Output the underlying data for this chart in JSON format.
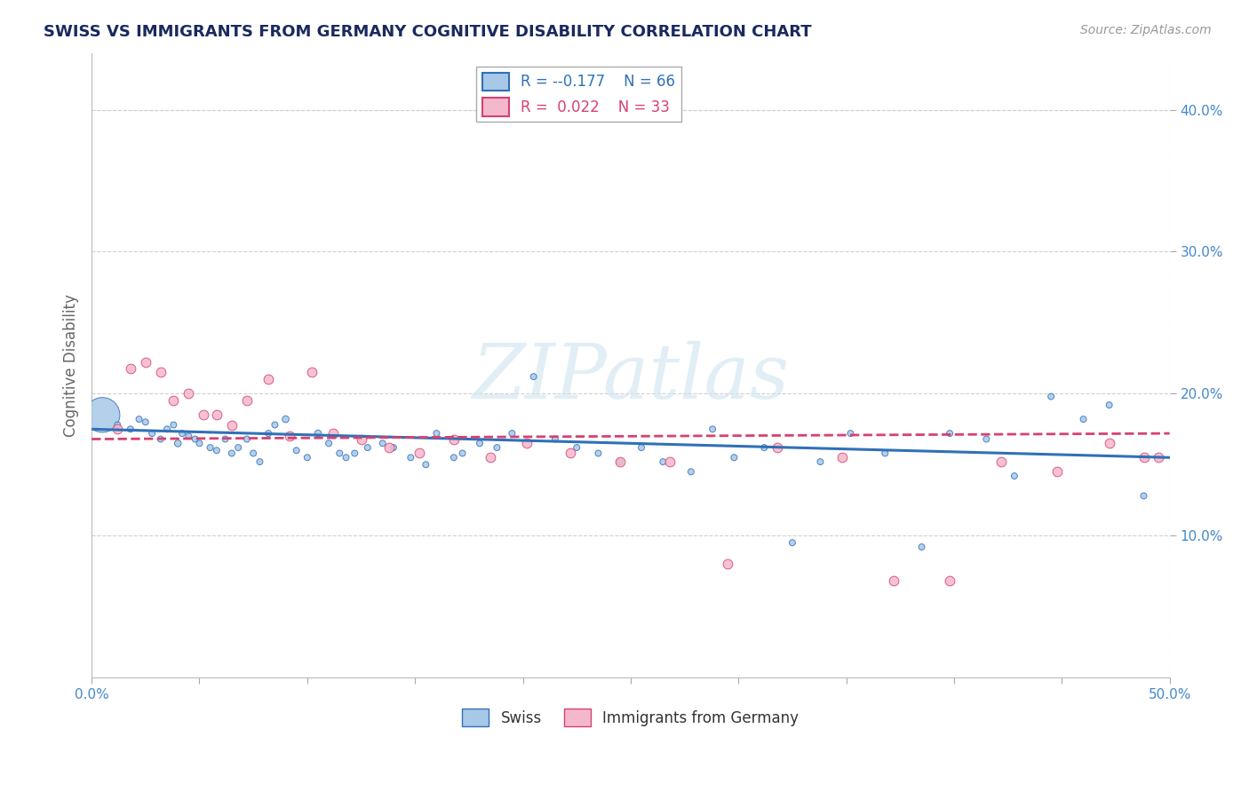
{
  "title": "SWISS VS IMMIGRANTS FROM GERMANY COGNITIVE DISABILITY CORRELATION CHART",
  "source_text": "Source: ZipAtlas.com",
  "ylabel": "Cognitive Disability",
  "xlim": [
    0.0,
    0.5
  ],
  "ylim": [
    0.0,
    0.44
  ],
  "xticks": [
    0.0,
    0.05,
    0.1,
    0.15,
    0.2,
    0.25,
    0.3,
    0.35,
    0.4,
    0.45,
    0.5
  ],
  "yticks": [
    0.1,
    0.2,
    0.3,
    0.4
  ],
  "ytick_labels": [
    "10.0%",
    "20.0%",
    "30.0%",
    "40.0%"
  ],
  "xtick_labels_show": [
    "0.0%",
    "50.0%"
  ],
  "background_color": "#ffffff",
  "grid_color": "#d0d0d0",
  "swiss_color": "#a8c8e8",
  "german_color": "#f4b8cc",
  "swiss_line_color": "#3070b8",
  "german_line_color": "#d84070",
  "swiss_x": [
    0.005,
    0.012,
    0.018,
    0.022,
    0.025,
    0.028,
    0.032,
    0.035,
    0.038,
    0.04,
    0.042,
    0.045,
    0.048,
    0.05,
    0.055,
    0.058,
    0.062,
    0.065,
    0.068,
    0.072,
    0.075,
    0.078,
    0.082,
    0.085,
    0.09,
    0.095,
    0.1,
    0.105,
    0.11,
    0.115,
    0.118,
    0.122,
    0.128,
    0.135,
    0.14,
    0.148,
    0.155,
    0.16,
    0.168,
    0.172,
    0.18,
    0.188,
    0.195,
    0.205,
    0.215,
    0.225,
    0.235,
    0.245,
    0.255,
    0.265,
    0.278,
    0.288,
    0.298,
    0.312,
    0.325,
    0.338,
    0.352,
    0.368,
    0.385,
    0.398,
    0.415,
    0.428,
    0.445,
    0.46,
    0.472,
    0.488
  ],
  "swiss_y": [
    0.185,
    0.178,
    0.175,
    0.182,
    0.18,
    0.172,
    0.168,
    0.175,
    0.178,
    0.165,
    0.172,
    0.17,
    0.168,
    0.165,
    0.162,
    0.16,
    0.168,
    0.158,
    0.162,
    0.168,
    0.158,
    0.152,
    0.172,
    0.178,
    0.182,
    0.16,
    0.155,
    0.172,
    0.165,
    0.158,
    0.155,
    0.158,
    0.162,
    0.165,
    0.162,
    0.155,
    0.15,
    0.172,
    0.155,
    0.158,
    0.165,
    0.162,
    0.172,
    0.212,
    0.168,
    0.162,
    0.158,
    0.152,
    0.162,
    0.152,
    0.145,
    0.175,
    0.155,
    0.162,
    0.095,
    0.152,
    0.172,
    0.158,
    0.092,
    0.172,
    0.168,
    0.142,
    0.198,
    0.182,
    0.192,
    0.128
  ],
  "swiss_sizes": [
    800,
    25,
    25,
    25,
    25,
    25,
    25,
    25,
    25,
    30,
    25,
    25,
    25,
    25,
    25,
    25,
    25,
    25,
    25,
    25,
    25,
    25,
    25,
    25,
    30,
    25,
    25,
    30,
    25,
    25,
    25,
    25,
    25,
    25,
    25,
    25,
    25,
    25,
    25,
    25,
    25,
    25,
    25,
    25,
    25,
    25,
    25,
    25,
    25,
    25,
    25,
    25,
    25,
    25,
    25,
    25,
    25,
    25,
    25,
    25,
    25,
    25,
    25,
    25,
    25,
    25
  ],
  "german_x": [
    0.012,
    0.018,
    0.025,
    0.032,
    0.038,
    0.045,
    0.052,
    0.058,
    0.065,
    0.072,
    0.082,
    0.092,
    0.102,
    0.112,
    0.125,
    0.138,
    0.152,
    0.168,
    0.185,
    0.202,
    0.222,
    0.245,
    0.268,
    0.295,
    0.318,
    0.348,
    0.372,
    0.398,
    0.422,
    0.448,
    0.472,
    0.488,
    0.495
  ],
  "german_y": [
    0.175,
    0.218,
    0.222,
    0.215,
    0.195,
    0.2,
    0.185,
    0.185,
    0.178,
    0.195,
    0.21,
    0.17,
    0.215,
    0.172,
    0.168,
    0.162,
    0.158,
    0.168,
    0.155,
    0.165,
    0.158,
    0.152,
    0.152,
    0.08,
    0.162,
    0.155,
    0.068,
    0.068,
    0.152,
    0.145,
    0.165,
    0.155,
    0.155
  ],
  "swiss_line_start_y": 0.175,
  "swiss_line_end_y": 0.155,
  "german_line_start_y": 0.168,
  "german_line_end_y": 0.172,
  "legend_swiss_R": "-0.177",
  "legend_swiss_N": "66",
  "legend_german_R": "0.022",
  "legend_german_N": "33",
  "title_color": "#1a2a5e",
  "axis_label_color": "#666666",
  "tick_label_color": "#4488cc",
  "watermark_text": "ZIPatlas",
  "watermark_color": "#d0e4f0",
  "watermark_alpha": 0.6,
  "source_color": "#999999"
}
